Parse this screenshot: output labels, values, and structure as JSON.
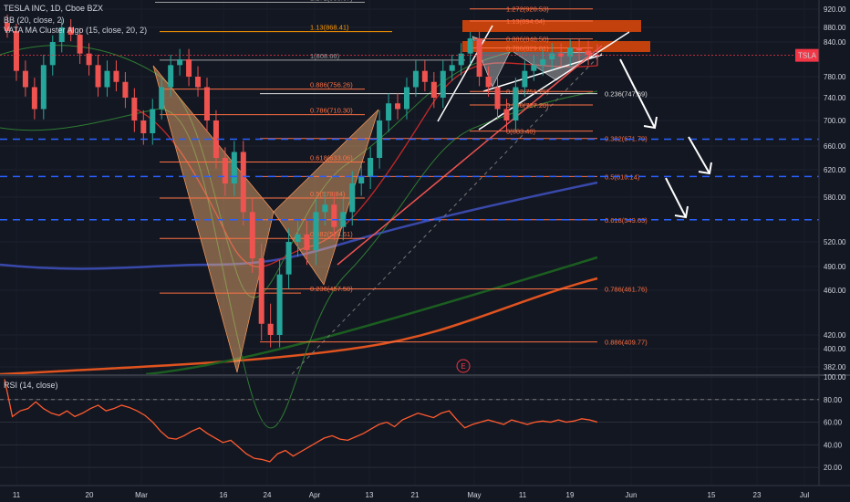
{
  "chart_data": [
    {
      "type": "candlestick",
      "title": "TESLA INC, 1D, Cboe BZX",
      "indicators": [
        "BB (20, close, 2)",
        "VATA MA Cluster Algo (15, close, 20, 2)"
      ],
      "symbol_badge": "TSLA · 816.88",
      "last_price": 816.88,
      "y_ticks": [
        "920.00",
        "880.00",
        "840.00",
        "780.00",
        "740.00",
        "700.00",
        "660.00",
        "620.00",
        "580.00",
        "520.00",
        "490.00",
        "460.00",
        "420.00",
        "400.00",
        "382.00"
      ],
      "price_levels": [
        {
          "label": "670.72",
          "value": 670.72
        },
        {
          "label": "610.14",
          "value": 610.14
        },
        {
          "label": "549.63",
          "value": 549.63
        }
      ],
      "fib_left": [
        {
          "label": "1.272(933.67)",
          "value": 933.67
        },
        {
          "label": "1.13(868.41)",
          "value": 868.41
        },
        {
          "label": "1(808.66)",
          "value": 808.66
        },
        {
          "label": "0.886(756.26)",
          "value": 756.26
        },
        {
          "label": "0.786(710.30)",
          "value": 710.3
        },
        {
          "label": "0.618(633.06)",
          "value": 633.06
        },
        {
          "label": "0.5(578.84)",
          "value": 578.84
        },
        {
          "label": "0.382(524.61)",
          "value": 524.61
        },
        {
          "label": "0.236(457.50)",
          "value": 457.5
        }
      ],
      "fib_right": [
        {
          "label": "1.618(947.88)",
          "value": 947.88
        },
        {
          "label": "1.272(920.53)",
          "value": 920.53
        },
        {
          "label": "1.13(894.04)",
          "value": 894.04
        },
        {
          "label": "0.886(848.50)",
          "value": 848.5
        },
        {
          "label": "0.786(829.81)",
          "value": 829.81
        },
        {
          "label": "0.382(751.75)",
          "value": 751.75
        },
        {
          "label": "0.236(727.20)",
          "value": 727.2
        },
        {
          "label": "0(683.40)",
          "value": 683.4
        },
        {
          "label": "0.236(747.69)",
          "value": 747.69
        },
        {
          "label": "0.382(671.79)",
          "value": 671.79
        },
        {
          "label": "0.5(610.14)",
          "value": 610.14
        },
        {
          "label": "0.618(549.63)",
          "value": 549.63
        },
        {
          "label": "0.786(461.76)",
          "value": 461.76
        },
        {
          "label": "0.886(409.77)",
          "value": 409.77
        }
      ],
      "x_ticks": [
        "11",
        "20",
        "Mar",
        "16",
        "24",
        "Apr",
        "13",
        "21",
        "May",
        "11",
        "19",
        "Jun",
        "15",
        "23",
        "Jul"
      ],
      "ohlc_close_approx": [
        870,
        790,
        760,
        720,
        800,
        840,
        880,
        860,
        820,
        800,
        760,
        790,
        770,
        740,
        700,
        680,
        720,
        760,
        800,
        810,
        780,
        760,
        700,
        640,
        600,
        650,
        560,
        500,
        430,
        420,
        480,
        520,
        530,
        510,
        560,
        570,
        540,
        560,
        600,
        610,
        640,
        700,
        730,
        720,
        760,
        790,
        770,
        740,
        790,
        800,
        820,
        850,
        780,
        760,
        720,
        700,
        760,
        790,
        800,
        810,
        820,
        815,
        830,
        825,
        818,
        816.88
      ],
      "event_marker": "E"
    },
    {
      "type": "line",
      "title": "RSI (14, close)",
      "y_ticks": [
        "100.00",
        "80.00",
        "60.00",
        "40.00",
        "20.00"
      ],
      "ylim": [
        0,
        100
      ],
      "values": [
        98,
        65,
        70,
        72,
        78,
        72,
        68,
        66,
        70,
        65,
        68,
        72,
        75,
        70,
        72,
        75,
        73,
        70,
        66,
        60,
        52,
        46,
        45,
        48,
        52,
        55,
        50,
        46,
        42,
        44,
        38,
        32,
        28,
        27,
        25,
        32,
        35,
        30,
        34,
        38,
        42,
        46,
        48,
        45,
        44,
        47,
        50,
        54,
        58,
        60,
        56,
        62,
        65,
        68,
        66,
        64,
        68,
        70,
        62,
        55,
        58,
        60,
        62,
        60,
        58,
        62,
        60,
        58,
        60,
        61,
        60,
        62,
        60,
        61,
        63,
        62,
        60
      ]
    }
  ],
  "colors": {
    "bg": "#131722",
    "up": "#26a69a",
    "down": "#ef5350",
    "rsi": "#ff5a2e",
    "badge": "#f23645",
    "blueLine": "#2962ff"
  }
}
